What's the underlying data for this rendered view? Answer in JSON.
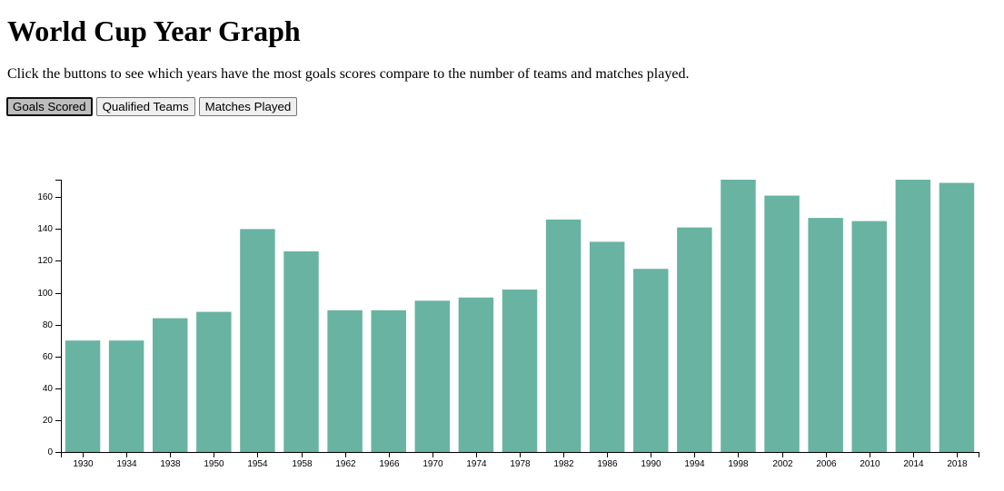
{
  "header": {
    "title": "World Cup Year Graph",
    "description": "Click the buttons to see which years have the most goals scores compare to the number of teams and matches played."
  },
  "buttons": [
    {
      "label": "Goals Scored",
      "active": true
    },
    {
      "label": "Qualified Teams",
      "active": false
    },
    {
      "label": "Matches Played",
      "active": false
    }
  ],
  "colors": {
    "bar": "#69b3a2"
  },
  "chart_data": {
    "type": "bar",
    "categories": [
      "1930",
      "1934",
      "1938",
      "1950",
      "1954",
      "1958",
      "1962",
      "1966",
      "1970",
      "1974",
      "1978",
      "1982",
      "1986",
      "1990",
      "1994",
      "1998",
      "2002",
      "2006",
      "2010",
      "2014",
      "2018"
    ],
    "values": [
      70,
      70,
      84,
      88,
      140,
      126,
      89,
      89,
      95,
      97,
      102,
      146,
      132,
      115,
      141,
      171,
      161,
      147,
      145,
      171,
      169
    ],
    "y_ticks": [
      "0",
      "20",
      "40",
      "60",
      "80",
      "100",
      "120",
      "140",
      "160"
    ],
    "ylim": [
      0,
      171
    ],
    "title": "",
    "xlabel": "",
    "ylabel": "",
    "grid": false
  }
}
